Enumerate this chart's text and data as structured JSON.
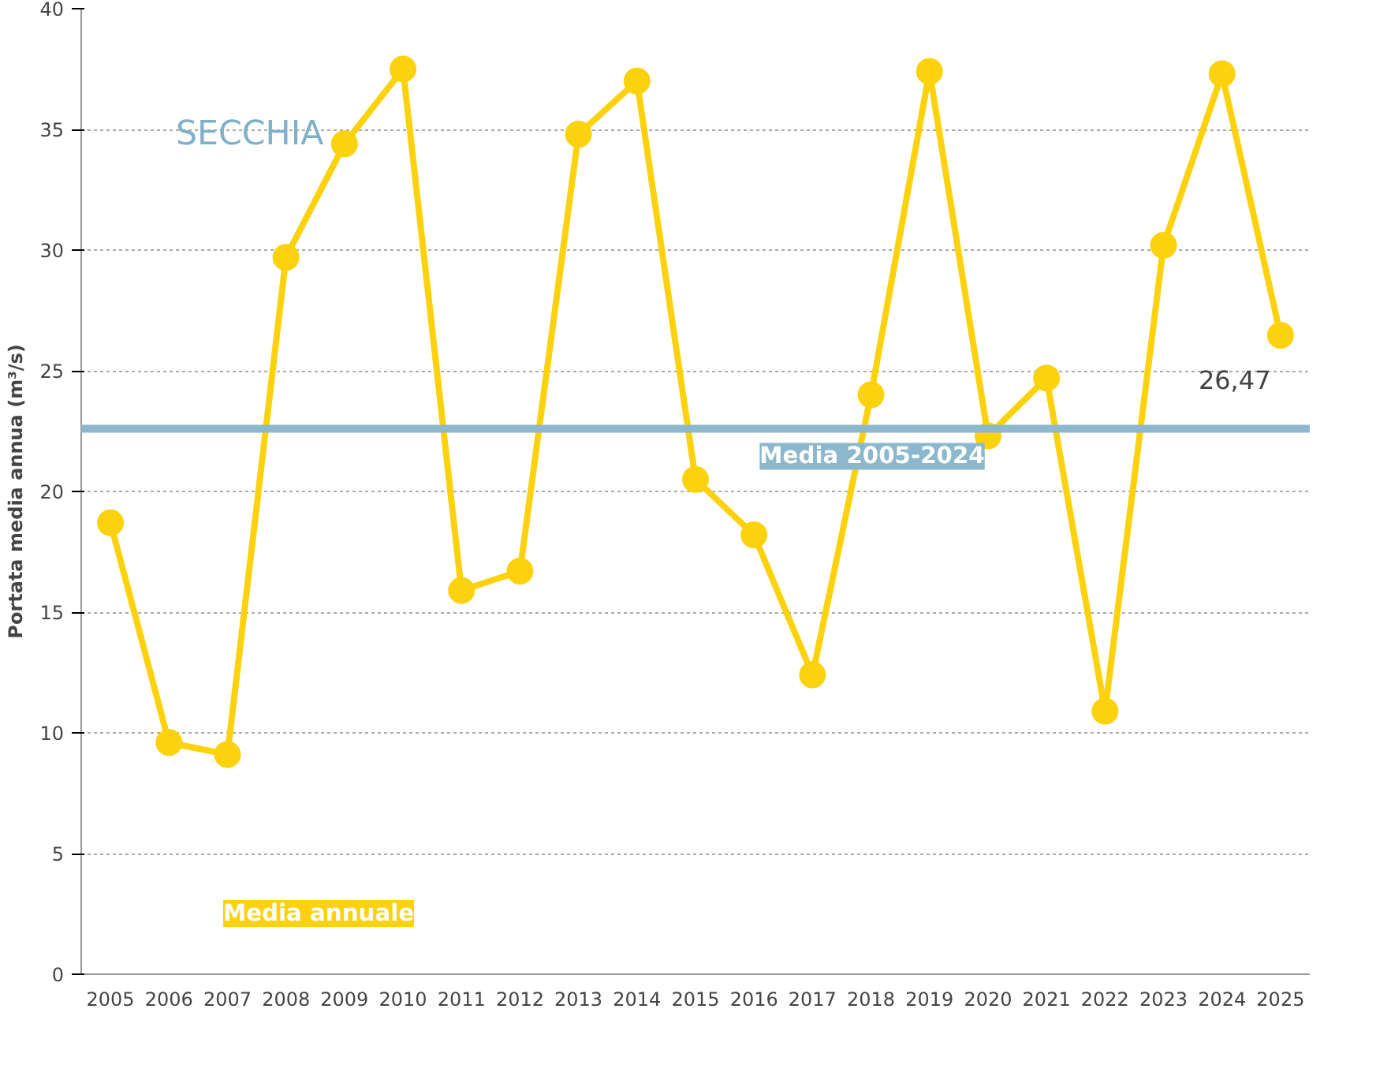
{
  "chart_data": {
    "type": "line",
    "title": "SECCHIA",
    "ylabel": "Portata media annua (m³/s)",
    "categories": [
      "2005",
      "2006",
      "2007",
      "2008",
      "2009",
      "2010",
      "2011",
      "2012",
      "2013",
      "2014",
      "2015",
      "2016",
      "2017",
      "2018",
      "2019",
      "2020",
      "2021",
      "2022",
      "2023",
      "2024",
      "2025"
    ],
    "series": [
      {
        "name": "Media annuale",
        "color": "#fcd20f",
        "values": [
          18.7,
          9.6,
          9.1,
          29.7,
          34.4,
          37.5,
          15.9,
          16.7,
          34.8,
          37.0,
          20.5,
          18.2,
          12.4,
          24.0,
          37.4,
          22.3,
          24.7,
          10.9,
          30.2,
          37.3,
          26.47
        ],
        "value_labels": [
          null,
          null,
          null,
          null,
          null,
          null,
          null,
          null,
          null,
          null,
          null,
          null,
          null,
          null,
          null,
          null,
          null,
          null,
          null,
          null,
          "26,47"
        ]
      }
    ],
    "ref_lines": [
      {
        "axis": "y",
        "value": 22.6,
        "label": "Media 2005-2024",
        "color": "#8bb8cc"
      }
    ],
    "ylim": [
      0,
      40
    ],
    "yticks": [
      0,
      5,
      10,
      15,
      20,
      25,
      30,
      35,
      40
    ],
    "grid": "y",
    "legend": "bottom left",
    "marker": "circle",
    "line_style": "solid"
  }
}
